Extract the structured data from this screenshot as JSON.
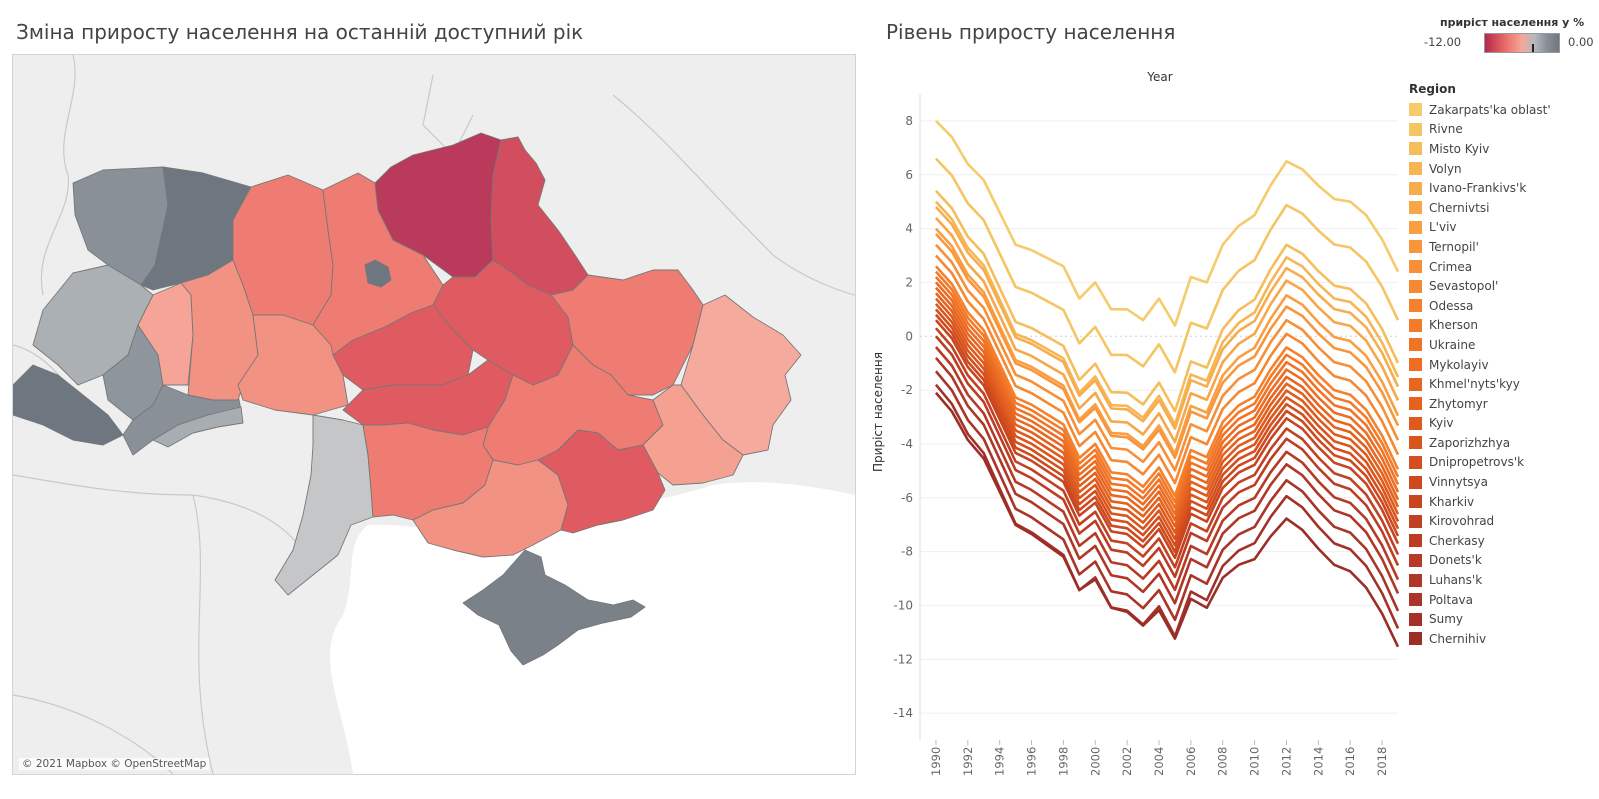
{
  "map": {
    "title": "Зміна приросту населення на останній доступний рік",
    "credit": "© 2021 Mapbox © OpenStreetMap",
    "color_legend": {
      "title": "приріст населення у %",
      "min_label": "-12.00",
      "max_label": "0.00",
      "low_color": "#b1284f",
      "high_color": "#6e7780"
    }
  },
  "chart_data": {
    "type": "line",
    "title": "Рівень приросту населення",
    "top_axis_label": "Year",
    "ylabel": "Приріст населення",
    "ylim": [
      -15,
      9
    ],
    "yticks": [
      8,
      6,
      4,
      2,
      0,
      -2,
      -4,
      -6,
      -8,
      -10,
      -12,
      -14
    ],
    "xlim": [
      1989,
      2019
    ],
    "xticks": [
      1990,
      1992,
      1994,
      1996,
      1998,
      2000,
      2002,
      2004,
      2006,
      2008,
      2010,
      2012,
      2014,
      2016,
      2018
    ],
    "legend_title": "Region",
    "legend_placement": "right",
    "x": [
      1990,
      1991,
      1992,
      1993,
      1994,
      1995,
      1996,
      1997,
      1998,
      1999,
      2000,
      2001,
      2002,
      2003,
      2004,
      2005,
      2006,
      2007,
      2008,
      2009,
      2010,
      2011,
      2012,
      2013,
      2014,
      2015,
      2016,
      2017,
      2018,
      2019
    ],
    "series": [
      {
        "name": "Zakarpats'ka oblast'",
        "color": "#f5cb6b",
        "base": 8.0,
        "shift": 0.0
      },
      {
        "name": "Rivne",
        "color": "#f5c463",
        "base": 6.6,
        "shift": -0.7
      },
      {
        "name": "Misto Kyiv",
        "color": "#f6bd5c",
        "base": 5.4,
        "shift": -1.7
      },
      {
        "name": "Volyn",
        "color": "#f7b655",
        "base": 5.0,
        "shift": -1.9
      },
      {
        "name": "Ivano-Frankivs'k",
        "color": "#f7ad4e",
        "base": 4.8,
        "shift": -2.8
      },
      {
        "name": "Chernivtsi",
        "color": "#f8a647",
        "base": 4.4,
        "shift": -3.0
      },
      {
        "name": "L'viv",
        "color": "#f99e41",
        "base": 4.0,
        "shift": -3.6
      },
      {
        "name": "Ternopil'",
        "color": "#f9963b",
        "base": 3.8,
        "shift": -4.6
      },
      {
        "name": "Crimea",
        "color": "#f88f36",
        "base": 3.4,
        "shift": -5.0
      },
      {
        "name": "Sevastopol'",
        "color": "#f78832",
        "base": 3.0,
        "shift": -5.4
      },
      {
        "name": "Odessa",
        "color": "#f6812d",
        "base": 2.6,
        "shift": -5.8
      },
      {
        "name": "Kherson",
        "color": "#f37a29",
        "base": 2.4,
        "shift": -6.1
      },
      {
        "name": "Ukraine",
        "color": "#f07426",
        "base": 2.2,
        "shift": -6.4
      },
      {
        "name": "Mykolayiv",
        "color": "#ec6d23",
        "base": 2.0,
        "shift": -6.7
      },
      {
        "name": "Khmel'nyts'kyy",
        "color": "#e86720",
        "base": 1.8,
        "shift": -7.0
      },
      {
        "name": "Zhytomyr",
        "color": "#e4611e",
        "base": 1.6,
        "shift": -7.2
      },
      {
        "name": "Kyiv",
        "color": "#df5b1d",
        "base": 1.4,
        "shift": -7.4
      },
      {
        "name": "Zaporizhzhya",
        "color": "#da551c",
        "base": 1.2,
        "shift": -7.6
      },
      {
        "name": "Dnipropetrovs'k",
        "color": "#d44f1d",
        "base": 1.0,
        "shift": -7.8
      },
      {
        "name": "Vinnytsya",
        "color": "#ce4a1e",
        "base": 0.8,
        "shift": -8.0
      },
      {
        "name": "Kharkiv",
        "color": "#c84520",
        "base": 0.6,
        "shift": -8.3
      },
      {
        "name": "Kirovohrad",
        "color": "#c24122",
        "base": 0.3,
        "shift": -8.6
      },
      {
        "name": "Cherkasy",
        "color": "#bc3d23",
        "base": 0.0,
        "shift": -8.9
      },
      {
        "name": "Donets'k",
        "color": "#b63a25",
        "base": -0.4,
        "shift": -9.2
      },
      {
        "name": "Luhans'k",
        "color": "#b03726",
        "base": -0.8,
        "shift": -9.4
      },
      {
        "name": "Poltava",
        "color": "#aa3427",
        "base": -1.3,
        "shift": -9.7
      },
      {
        "name": "Sumy",
        "color": "#a33128",
        "base": -1.8,
        "shift": -10.0
      },
      {
        "name": "Chernihiv",
        "color": "#9c2e28",
        "base": -2.1,
        "shift": -12.5
      }
    ],
    "series_shape": {
      "years": [
        1990,
        1991,
        1992,
        1993,
        1994,
        1995,
        1996,
        1997,
        1998,
        1999,
        2000,
        2001,
        2002,
        2003,
        2004,
        2005,
        2006,
        2007,
        2008,
        2009,
        2010,
        2011,
        2012,
        2013,
        2014,
        2015,
        2016,
        2017,
        2018,
        2019
      ],
      "profile": [
        0,
        -0.6,
        -1.6,
        -2.2,
        -3.4,
        -4.6,
        -4.8,
        -5.1,
        -5.4,
        -6.6,
        -6.0,
        -7.0,
        -7.0,
        -7.4,
        -6.6,
        -7.6,
        -5.8,
        -6.0,
        -4.6,
        -3.9,
        -3.5,
        -2.4,
        -1.5,
        -1.8,
        -2.4,
        -2.9,
        -3.0,
        -3.5,
        -4.4,
        -5.6
      ]
    }
  }
}
